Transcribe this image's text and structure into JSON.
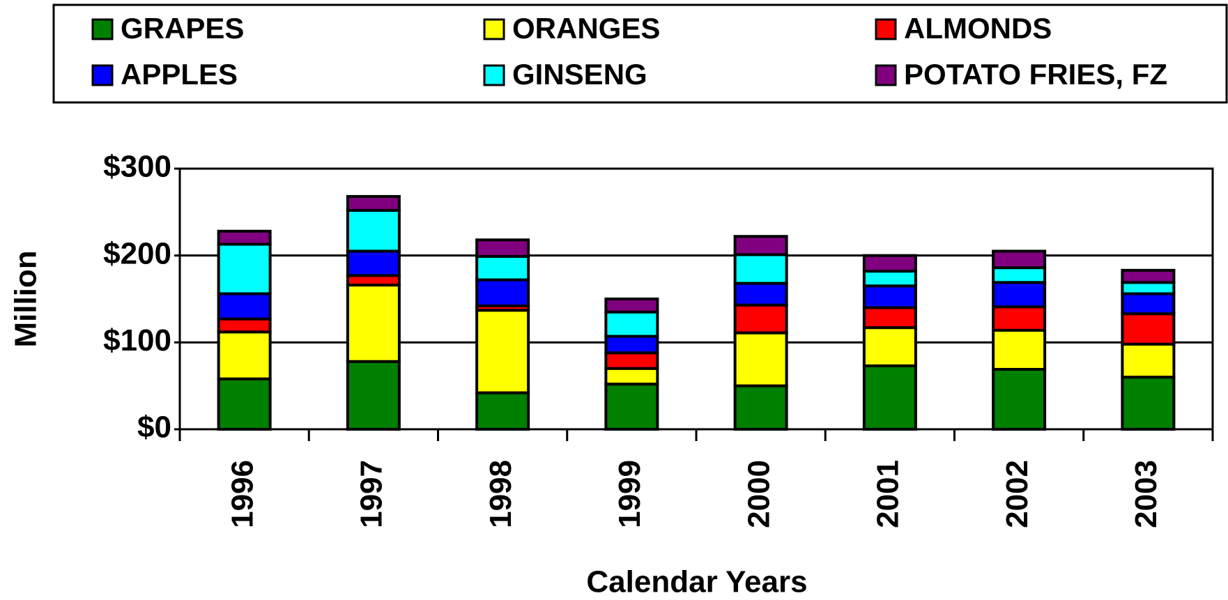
{
  "chart_data": {
    "type": "stacked_bar",
    "categories": [
      "1996",
      "1997",
      "1998",
      "1999",
      "2000",
      "2001",
      "2002",
      "2003"
    ],
    "series": [
      {
        "name": "GRAPES",
        "color": "#008000",
        "values": [
          58,
          78,
          42,
          52,
          50,
          73,
          69,
          60
        ]
      },
      {
        "name": "ORANGES",
        "color": "#ffff00",
        "values": [
          54,
          88,
          95,
          18,
          61,
          44,
          45,
          38
        ]
      },
      {
        "name": "ALMONDS",
        "color": "#ff0000",
        "values": [
          15,
          11,
          5,
          18,
          32,
          23,
          27,
          35
        ]
      },
      {
        "name": "APPLES",
        "color": "#0000ff",
        "values": [
          29,
          28,
          30,
          19,
          25,
          25,
          28,
          23
        ]
      },
      {
        "name": "GINSENG",
        "color": "#00ffff",
        "values": [
          57,
          47,
          27,
          28,
          33,
          17,
          17,
          13
        ]
      },
      {
        "name": "POTATO FRIES, FZ",
        "color": "#800080",
        "values": [
          15,
          16,
          19,
          15,
          21,
          18,
          19,
          14
        ]
      }
    ],
    "ylabel": "Million",
    "xlabel": "Calendar Years",
    "ylim": [
      0,
      300
    ],
    "yticks": [
      {
        "value": 0,
        "label": "$0"
      },
      {
        "value": 100,
        "label": "$100"
      },
      {
        "value": 200,
        "label": "$200"
      },
      {
        "value": 300,
        "label": "$300"
      }
    ],
    "grid": true,
    "legend": "top"
  }
}
